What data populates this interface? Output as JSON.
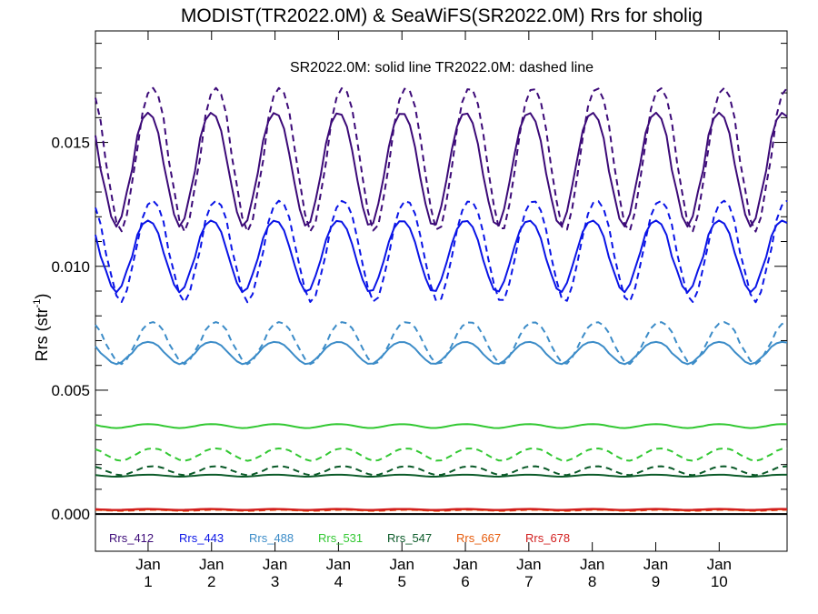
{
  "chart_data": {
    "type": "line",
    "title": "MODIST(TR2022.0M) & SeaWiFS(SR2022.0M)  Rrs for sholig",
    "annotation": "SR2022.0M: solid line   TR2022.0M: dashed line",
    "ylabel": "Rrs (str",
    "ylabel_sup": "-1",
    "ylabel_close": ")",
    "xlabel": "",
    "xlim": [
      0,
      10.9
    ],
    "ylim": [
      -0.0015,
      0.0195
    ],
    "yticks": [
      0.0,
      0.005,
      0.01,
      0.015
    ],
    "ytick_labels": [
      "0.000",
      "0.005",
      "0.010",
      "0.015"
    ],
    "xticks": [
      {
        "x": 0.83,
        "top": "Jan",
        "bottom": "1"
      },
      {
        "x": 1.83,
        "top": "Jan",
        "bottom": "2"
      },
      {
        "x": 2.83,
        "top": "Jan",
        "bottom": "3"
      },
      {
        "x": 3.83,
        "top": "Jan",
        "bottom": "4"
      },
      {
        "x": 4.83,
        "top": "Jan",
        "bottom": "5"
      },
      {
        "x": 5.83,
        "top": "Jan",
        "bottom": "6"
      },
      {
        "x": 6.83,
        "top": "Jan",
        "bottom": "7"
      },
      {
        "x": 7.83,
        "top": "Jan",
        "bottom": "8"
      },
      {
        "x": 8.83,
        "top": "Jan",
        "bottom": "9"
      },
      {
        "x": 9.83,
        "top": "Jan",
        "bottom": "10"
      }
    ],
    "legend_placement": "bottom-left",
    "grid": false,
    "zero_line": true,
    "series": [
      {
        "name": "Rrs_412",
        "color": "#3c0a78",
        "style": "solid",
        "mean": 0.0139,
        "amp": 0.0023,
        "phase_peak": 0.83
      },
      {
        "name": "Rrs_412",
        "color": "#3c0a78",
        "style": "dashed",
        "mean": 0.0143,
        "amp": 0.0029,
        "phase_peak": 0.9
      },
      {
        "name": "Rrs_443",
        "color": "#0a14e6",
        "style": "solid",
        "mean": 0.0104,
        "amp": 0.00145,
        "phase_peak": 0.83
      },
      {
        "name": "Rrs_443",
        "color": "#0a14e6",
        "style": "dashed",
        "mean": 0.0106,
        "amp": 0.00205,
        "phase_peak": 0.9
      },
      {
        "name": "Rrs_488",
        "color": "#3c8cc8",
        "style": "solid",
        "mean": 0.0065,
        "amp": 0.00045,
        "phase_peak": 0.83
      },
      {
        "name": "Rrs_488",
        "color": "#3c8cc8",
        "style": "dashed",
        "mean": 0.0069,
        "amp": 0.00085,
        "phase_peak": 0.9
      },
      {
        "name": "Rrs_531",
        "color": "#32c832",
        "style": "solid",
        "mean": 0.00355,
        "amp": 8e-05,
        "phase_peak": 0.83
      },
      {
        "name": "Rrs_531",
        "color": "#32c832",
        "style": "dashed",
        "mean": 0.0024,
        "amp": 0.00025,
        "phase_peak": 0.9
      },
      {
        "name": "Rrs_547",
        "color": "#0a5a28",
        "style": "solid",
        "mean": 0.00155,
        "amp": 4e-05,
        "phase_peak": 0.83
      },
      {
        "name": "Rrs_547",
        "color": "#0a5a28",
        "style": "dashed",
        "mean": 0.00175,
        "amp": 0.00018,
        "phase_peak": 0.9
      },
      {
        "name": "Rrs_667",
        "color": "#e65a0a",
        "style": "solid",
        "mean": 0.00017,
        "amp": 2e-05,
        "phase_peak": 0.83
      },
      {
        "name": "Rrs_667",
        "color": "#e65a0a",
        "style": "dashed",
        "mean": 0.00015,
        "amp": 2e-05,
        "phase_peak": 0.9
      },
      {
        "name": "Rrs_678",
        "color": "#d21e1e",
        "style": "solid",
        "mean": 0.00019,
        "amp": 2e-05,
        "phase_peak": 0.83
      },
      {
        "name": "Rrs_678",
        "color": "#d21e1e",
        "style": "dashed",
        "mean": 0.00017,
        "amp": 2e-05,
        "phase_peak": 0.9
      }
    ],
    "legend": [
      {
        "label": "Rrs_412",
        "color": "#3c0a78"
      },
      {
        "label": "Rrs_443",
        "color": "#0a14e6"
      },
      {
        "label": "Rrs_488",
        "color": "#3c8cc8"
      },
      {
        "label": "Rrs_531",
        "color": "#32c832"
      },
      {
        "label": "Rrs_547",
        "color": "#0a5a28"
      },
      {
        "label": "Rrs_667",
        "color": "#e65a0a"
      },
      {
        "label": "Rrs_678",
        "color": "#d21e1e"
      }
    ]
  }
}
